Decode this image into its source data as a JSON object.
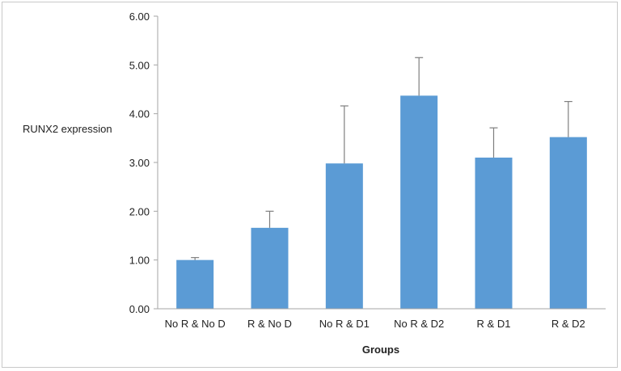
{
  "chart_data": {
    "type": "bar",
    "title": "",
    "xlabel": "Groups",
    "ylabel": "RUNX2 expression",
    "categories": [
      "No R & No D",
      "R & No D",
      "No R & D1",
      "No R & D2",
      "R & D1",
      "R & D2"
    ],
    "values": [
      1.0,
      1.66,
      2.98,
      4.37,
      3.1,
      3.52
    ],
    "error_upper": [
      0.05,
      0.34,
      1.18,
      0.78,
      0.61,
      0.73
    ],
    "ylim": [
      0,
      6
    ],
    "yticks": [
      0,
      1,
      2,
      3,
      4,
      5,
      6
    ],
    "ytick_labels": [
      "0.00",
      "1.00",
      "2.00",
      "3.00",
      "4.00",
      "5.00",
      "6.00"
    ],
    "grid": false,
    "legend": "none",
    "bar_color": "#5b9bd5",
    "error_color": "#7f7f7f",
    "axis_color": "#a6a6a6"
  }
}
